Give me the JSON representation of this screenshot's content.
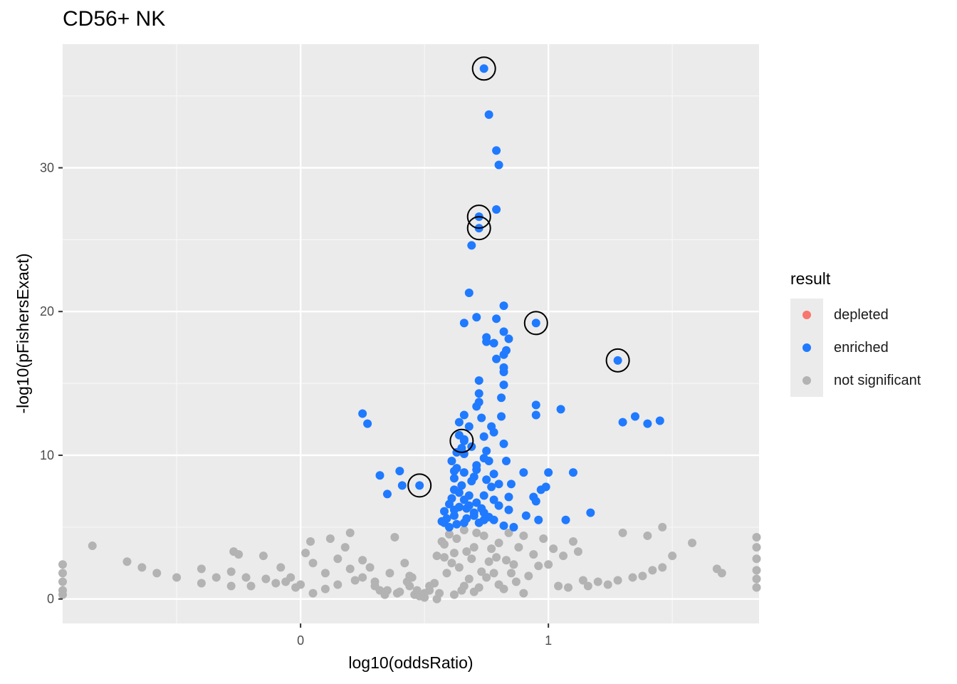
{
  "chart_data": {
    "type": "scatter",
    "title": "CD56+ NK",
    "xlabel": "log10(oddsRatio)",
    "ylabel": "-log10(pFishersExact)",
    "xlim": [
      -0.96,
      1.85
    ],
    "ylim": [
      -1.7,
      38.6
    ],
    "x_ticks": [
      0,
      1
    ],
    "y_ticks": [
      0,
      10,
      20,
      30
    ],
    "grid": true,
    "legend": {
      "title": "result",
      "position": "right",
      "entries": [
        {
          "label": "depleted",
          "color": "#F8766D"
        },
        {
          "label": "enriched",
          "color": "#1F7AFF"
        },
        {
          "label": "not significant",
          "color": "#B3B3B3"
        }
      ]
    },
    "series": [
      {
        "name": "enriched",
        "color": "#1F7AFF",
        "points": [
          [
            0.74,
            36.9
          ],
          [
            0.76,
            33.7
          ],
          [
            0.79,
            31.2
          ],
          [
            0.8,
            30.2
          ],
          [
            0.72,
            26.6
          ],
          [
            0.79,
            27.1
          ],
          [
            0.72,
            25.8
          ],
          [
            0.69,
            24.6
          ],
          [
            0.68,
            21.3
          ],
          [
            0.82,
            20.4
          ],
          [
            0.71,
            19.6
          ],
          [
            0.79,
            19.5
          ],
          [
            0.66,
            19.2
          ],
          [
            0.95,
            19.2
          ],
          [
            0.75,
            18.2
          ],
          [
            0.82,
            18.6
          ],
          [
            0.84,
            18.1
          ],
          [
            0.75,
            17.9
          ],
          [
            0.78,
            17.8
          ],
          [
            0.83,
            17.3
          ],
          [
            0.82,
            17.0
          ],
          [
            0.79,
            16.7
          ],
          [
            0.82,
            16.1
          ],
          [
            0.82,
            15.8
          ],
          [
            1.28,
            16.6
          ],
          [
            0.72,
            15.2
          ],
          [
            0.82,
            14.9
          ],
          [
            0.72,
            14.3
          ],
          [
            0.81,
            14.0
          ],
          [
            0.72,
            13.7
          ],
          [
            0.95,
            13.5
          ],
          [
            0.71,
            13.4
          ],
          [
            1.05,
            13.2
          ],
          [
            0.25,
            12.9
          ],
          [
            0.95,
            12.8
          ],
          [
            0.66,
            12.8
          ],
          [
            0.73,
            12.6
          ],
          [
            0.81,
            12.7
          ],
          [
            1.35,
            12.7
          ],
          [
            1.45,
            12.4
          ],
          [
            0.64,
            12.3
          ],
          [
            1.3,
            12.3
          ],
          [
            1.4,
            12.2
          ],
          [
            0.27,
            12.2
          ],
          [
            0.68,
            12.0
          ],
          [
            0.77,
            12.0
          ],
          [
            0.78,
            11.6
          ],
          [
            0.74,
            11.3
          ],
          [
            0.64,
            11.4
          ],
          [
            0.66,
            11.1
          ],
          [
            0.66,
            11.0
          ],
          [
            0.82,
            10.8
          ],
          [
            0.69,
            10.6
          ],
          [
            0.65,
            10.5
          ],
          [
            0.75,
            10.3
          ],
          [
            0.66,
            10.1
          ],
          [
            0.74,
            9.8
          ],
          [
            0.83,
            9.6
          ],
          [
            0.76,
            9.6
          ],
          [
            0.71,
            9.3
          ],
          [
            0.63,
            9.1
          ],
          [
            0.66,
            8.8
          ],
          [
            0.9,
            8.8
          ],
          [
            0.78,
            8.7
          ],
          [
            0.62,
            8.9
          ],
          [
            1.1,
            8.8
          ],
          [
            1.0,
            8.8
          ],
          [
            0.4,
            8.9
          ],
          [
            0.7,
            8.5
          ],
          [
            0.32,
            8.6
          ],
          [
            0.62,
            8.4
          ],
          [
            0.75,
            8.3
          ],
          [
            0.85,
            8.0
          ],
          [
            0.65,
            7.9
          ],
          [
            0.77,
            7.8
          ],
          [
            0.62,
            7.6
          ],
          [
            0.99,
            7.8
          ],
          [
            0.97,
            7.6
          ],
          [
            0.48,
            7.9
          ],
          [
            0.41,
            7.9
          ],
          [
            0.35,
            7.3
          ],
          [
            0.68,
            7.2
          ],
          [
            0.74,
            7.2
          ],
          [
            0.84,
            7.1
          ],
          [
            0.94,
            7.1
          ],
          [
            0.66,
            6.9
          ],
          [
            0.78,
            6.9
          ],
          [
            0.71,
            6.7
          ],
          [
            0.95,
            6.8
          ],
          [
            0.6,
            6.6
          ],
          [
            0.8,
            6.5
          ],
          [
            0.64,
            6.4
          ],
          [
            0.67,
            6.3
          ],
          [
            0.73,
            6.3
          ],
          [
            0.84,
            6.2
          ],
          [
            0.58,
            6.1
          ],
          [
            0.7,
            6.0
          ],
          [
            1.17,
            6.0
          ],
          [
            0.91,
            5.8
          ],
          [
            0.62,
            5.8
          ],
          [
            0.76,
            5.7
          ],
          [
            0.59,
            5.6
          ],
          [
            0.67,
            5.6
          ],
          [
            0.78,
            5.5
          ],
          [
            0.96,
            5.5
          ],
          [
            0.57,
            5.4
          ],
          [
            1.07,
            5.5
          ],
          [
            0.63,
            5.2
          ],
          [
            0.72,
            5.3
          ],
          [
            0.82,
            5.1
          ],
          [
            0.6,
            5.0
          ],
          [
            0.66,
            5.3
          ],
          [
            0.86,
            5.0
          ],
          [
            0.7,
            5.8
          ],
          [
            0.58,
            5.3
          ],
          [
            0.74,
            6.0
          ],
          [
            0.61,
            7.0
          ],
          [
            0.64,
            7.4
          ],
          [
            0.69,
            8.2
          ],
          [
            0.61,
            9.6
          ],
          [
            0.63,
            10.2
          ],
          [
            0.71,
            9.0
          ],
          [
            0.8,
            8.0
          ],
          [
            0.62,
            6.2
          ],
          [
            0.68,
            6.5
          ],
          [
            0.74,
            5.5
          ]
        ]
      },
      {
        "name": "not significant",
        "color": "#B3B3B3",
        "points": [
          [
            -0.84,
            3.7
          ],
          [
            -0.7,
            2.6
          ],
          [
            -0.64,
            2.2
          ],
          [
            -0.58,
            1.8
          ],
          [
            -0.5,
            1.5
          ],
          [
            -0.4,
            1.1
          ],
          [
            -0.4,
            2.1
          ],
          [
            -0.34,
            1.5
          ],
          [
            -0.27,
            3.3
          ],
          [
            -0.25,
            3.1
          ],
          [
            -0.28,
            1.9
          ],
          [
            -0.28,
            0.9
          ],
          [
            -0.22,
            1.5
          ],
          [
            -0.2,
            0.9
          ],
          [
            -0.15,
            3.0
          ],
          [
            -0.14,
            1.4
          ],
          [
            -0.1,
            1.1
          ],
          [
            -0.08,
            2.2
          ],
          [
            -0.06,
            1.2
          ],
          [
            -0.04,
            1.5
          ],
          [
            0.0,
            1.0
          ],
          [
            0.02,
            3.2
          ],
          [
            0.04,
            4.0
          ],
          [
            0.05,
            2.5
          ],
          [
            0.1,
            1.8
          ],
          [
            0.12,
            4.2
          ],
          [
            0.15,
            2.8
          ],
          [
            0.18,
            3.6
          ],
          [
            0.2,
            4.6
          ],
          [
            0.2,
            2.1
          ],
          [
            0.22,
            1.3
          ],
          [
            0.25,
            2.7
          ],
          [
            0.28,
            2.2
          ],
          [
            0.3,
            1.2
          ],
          [
            0.32,
            0.6
          ],
          [
            0.36,
            1.8
          ],
          [
            0.38,
            4.3
          ],
          [
            0.4,
            0.5
          ],
          [
            0.42,
            2.5
          ],
          [
            0.44,
            0.9
          ],
          [
            0.46,
            0.3
          ],
          [
            0.48,
            0.2
          ],
          [
            0.5,
            0.1
          ],
          [
            0.52,
            0.6
          ],
          [
            0.54,
            1.1
          ],
          [
            0.56,
            0.4
          ],
          [
            0.58,
            2.9
          ],
          [
            0.58,
            3.8
          ],
          [
            0.6,
            4.5
          ],
          [
            0.62,
            3.2
          ],
          [
            0.64,
            2.2
          ],
          [
            0.66,
            4.8
          ],
          [
            0.68,
            1.4
          ],
          [
            0.7,
            3.6
          ],
          [
            0.72,
            0.8
          ],
          [
            0.74,
            4.4
          ],
          [
            0.76,
            2.6
          ],
          [
            0.78,
            1.8
          ],
          [
            0.8,
            3.9
          ],
          [
            0.82,
            0.7
          ],
          [
            0.84,
            4.6
          ],
          [
            0.86,
            2.4
          ],
          [
            0.88,
            3.6
          ],
          [
            0.9,
            4.4
          ],
          [
            0.92,
            1.6
          ],
          [
            0.94,
            3.1
          ],
          [
            0.96,
            2.3
          ],
          [
            0.98,
            4.2
          ],
          [
            1.0,
            2.4
          ],
          [
            1.02,
            3.5
          ],
          [
            1.04,
            0.9
          ],
          [
            1.06,
            3.0
          ],
          [
            1.08,
            0.8
          ],
          [
            1.1,
            4.0
          ],
          [
            1.12,
            3.3
          ],
          [
            1.14,
            1.3
          ],
          [
            1.16,
            0.9
          ],
          [
            1.2,
            1.2
          ],
          [
            1.24,
            1.0
          ],
          [
            1.28,
            1.3
          ],
          [
            1.3,
            4.6
          ],
          [
            1.34,
            1.5
          ],
          [
            1.38,
            1.6
          ],
          [
            1.4,
            4.4
          ],
          [
            1.42,
            2.0
          ],
          [
            1.46,
            2.2
          ],
          [
            1.46,
            5.0
          ],
          [
            1.5,
            3.0
          ],
          [
            1.58,
            3.9
          ],
          [
            1.68,
            2.1
          ],
          [
            1.7,
            1.8
          ],
          [
            1.84,
            4.3
          ],
          [
            1.84,
            3.6
          ],
          [
            1.84,
            2.8
          ],
          [
            1.84,
            2.0
          ],
          [
            1.84,
            1.4
          ],
          [
            1.84,
            0.8
          ],
          [
            -0.96,
            2.4
          ],
          [
            -0.96,
            1.8
          ],
          [
            -0.96,
            1.2
          ],
          [
            -0.96,
            0.6
          ],
          [
            -0.96,
            0.3
          ],
          [
            0.55,
            0.0
          ],
          [
            0.62,
            0.3
          ],
          [
            0.66,
            0.9
          ],
          [
            0.7,
            0.5
          ],
          [
            0.75,
            1.5
          ],
          [
            0.8,
            1.0
          ],
          [
            0.85,
            1.8
          ],
          [
            0.9,
            0.4
          ],
          [
            0.55,
            3.0
          ],
          [
            0.57,
            4.0
          ],
          [
            0.59,
            1.8
          ],
          [
            0.61,
            2.5
          ],
          [
            0.63,
            4.2
          ],
          [
            0.65,
            0.6
          ],
          [
            0.67,
            3.3
          ],
          [
            0.69,
            2.8
          ],
          [
            0.71,
            4.6
          ],
          [
            0.73,
            1.9
          ],
          [
            0.77,
            3.5
          ],
          [
            0.79,
            2.9
          ],
          [
            0.83,
            2.7
          ],
          [
            0.87,
            1.2
          ],
          [
            0.35,
            0.6
          ],
          [
            0.3,
            0.9
          ],
          [
            0.25,
            1.5
          ],
          [
            0.15,
            1.0
          ],
          [
            0.1,
            0.7
          ],
          [
            0.05,
            0.4
          ],
          [
            -0.02,
            0.8
          ],
          [
            0.45,
            1.5
          ],
          [
            0.47,
            0.6
          ],
          [
            0.43,
            1.2
          ],
          [
            0.39,
            0.4
          ],
          [
            0.34,
            0.3
          ],
          [
            0.5,
            0.4
          ],
          [
            0.52,
            0.9
          ],
          [
            0.44,
            1.6
          ]
        ]
      }
    ],
    "highlighted": [
      [
        0.74,
        36.9
      ],
      [
        0.72,
        26.6
      ],
      [
        0.72,
        25.8
      ],
      [
        0.95,
        19.2
      ],
      [
        1.28,
        16.6
      ],
      [
        0.65,
        11.0
      ],
      [
        0.48,
        7.9
      ]
    ]
  }
}
